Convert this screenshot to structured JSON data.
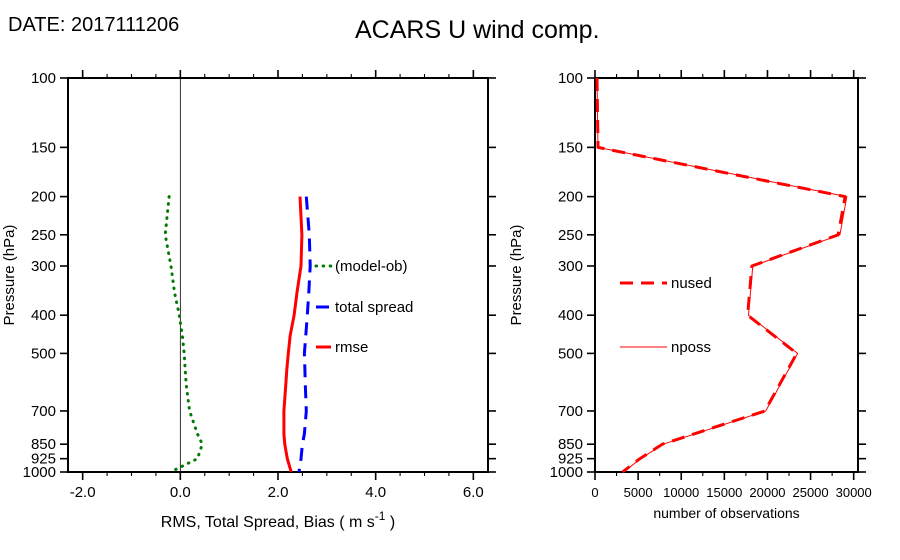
{
  "header": {
    "date_label": "DATE: 2017111206",
    "title": "ACARS U wind comp."
  },
  "chart_data": [
    {
      "type": "line",
      "panel": "left",
      "xlabel_parts": [
        "RMS, Total Spread, Bias ( m s",
        "-1",
        " )"
      ],
      "ylabel": "Pressure (hPa)",
      "y_scale": "log",
      "ylim": [
        100,
        1000
      ],
      "y_ticks": [
        100,
        150,
        200,
        250,
        300,
        400,
        500,
        700,
        850,
        925,
        1000
      ],
      "xlim": [
        -2.3,
        6.3
      ],
      "x_ticks": [
        -2,
        0,
        2,
        4,
        6
      ],
      "x_tick_labels": [
        "-2.0",
        "0.0",
        "2.0",
        "4.0",
        "6.0"
      ],
      "x_minor_step": 0.5,
      "zero_line": true,
      "grid": false,
      "legend_position": "inside-center-right",
      "series": [
        {
          "name": "(model-ob)",
          "style": "dotted",
          "color": "#007a00",
          "width": 3,
          "levels": [
            200,
            250,
            300,
            350,
            400,
            450,
            500,
            550,
            600,
            700,
            800,
            850,
            925,
            1000
          ],
          "values": [
            -0.23,
            -0.31,
            -0.19,
            -0.12,
            -0.02,
            0.04,
            0.08,
            0.1,
            0.12,
            0.19,
            0.35,
            0.45,
            0.35,
            -0.2
          ]
        },
        {
          "name": "total spread",
          "style": "dashed",
          "color": "#0000ff",
          "width": 3,
          "levels": [
            200,
            250,
            300,
            350,
            400,
            450,
            500,
            550,
            600,
            700,
            800,
            850,
            925,
            1000
          ],
          "values": [
            2.58,
            2.64,
            2.66,
            2.63,
            2.6,
            2.57,
            2.54,
            2.55,
            2.56,
            2.58,
            2.54,
            2.5,
            2.47,
            2.43
          ]
        },
        {
          "name": "rmse",
          "style": "solid",
          "color": "#ff0000",
          "width": 3,
          "levels": [
            200,
            250,
            300,
            350,
            400,
            450,
            500,
            550,
            600,
            700,
            800,
            850,
            925,
            1000
          ],
          "values": [
            2.45,
            2.49,
            2.47,
            2.39,
            2.33,
            2.25,
            2.21,
            2.18,
            2.16,
            2.12,
            2.12,
            2.14,
            2.19,
            2.27
          ]
        }
      ]
    },
    {
      "type": "line",
      "panel": "right",
      "xlabel_parts": [
        "number of observations"
      ],
      "ylabel": "Pressure (hPa)",
      "y_scale": "log",
      "ylim": [
        100,
        1000
      ],
      "y_ticks": [
        100,
        150,
        200,
        250,
        300,
        400,
        500,
        700,
        850,
        925,
        1000
      ],
      "xlim": [
        0,
        30500
      ],
      "x_ticks": [
        0,
        5000,
        10000,
        15000,
        20000,
        25000,
        30000
      ],
      "x_tick_labels": [
        "0",
        "5000",
        "10000",
        "15000",
        "20000",
        "25000",
        "30000"
      ],
      "x_minor_step": 2500,
      "zero_line": false,
      "grid": false,
      "legend_position": "inside-center-left",
      "series": [
        {
          "name": "nused",
          "style": "dashed",
          "color": "#ff0000",
          "width": 3,
          "levels": [
            100,
            150,
            200,
            250,
            300,
            400,
            500,
            700,
            850,
            925,
            1000
          ],
          "values": [
            230,
            350,
            29000,
            28200,
            18200,
            17700,
            23400,
            19700,
            7800,
            5200,
            3200
          ]
        },
        {
          "name": "nposs",
          "style": "solid",
          "color": "#ff0000",
          "width": 1,
          "levels": [
            100,
            150,
            200,
            250,
            300,
            400,
            500,
            700,
            850,
            925,
            1000
          ],
          "values": [
            230,
            350,
            29200,
            28400,
            18300,
            17800,
            23500,
            19800,
            7900,
            5300,
            3300
          ]
        }
      ]
    }
  ]
}
